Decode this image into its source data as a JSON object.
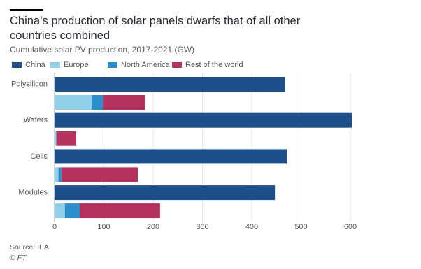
{
  "chart_data": {
    "type": "grouped-stacked-bar",
    "title": "China’s production of solar panels dwarfs that of all other countries combined",
    "subtitle": "Cumulative solar PV production, 2017-2021 (GW)",
    "categories": [
      "Polysilicon",
      "Wafers",
      "Cells",
      "Modules"
    ],
    "series": [
      {
        "name": "China",
        "color": "#1d4f8c",
        "values": [
          468,
          603,
          471,
          447
        ],
        "group": "china"
      },
      {
        "name": "Europe",
        "color": "#8fd0ea",
        "values": [
          75,
          3,
          8,
          21
        ],
        "group": "others"
      },
      {
        "name": "North America",
        "color": "#2b8fcb",
        "values": [
          23,
          1,
          6,
          30
        ],
        "group": "others"
      },
      {
        "name": "Rest of the world",
        "color": "#b3325f",
        "values": [
          86,
          40,
          155,
          163
        ],
        "group": "others"
      }
    ],
    "xlim": [
      0,
      600
    ],
    "xticks": [
      0,
      100,
      200,
      300,
      400,
      500,
      600
    ],
    "grid": true,
    "source": "Source: IEA",
    "credit": "© FT"
  }
}
